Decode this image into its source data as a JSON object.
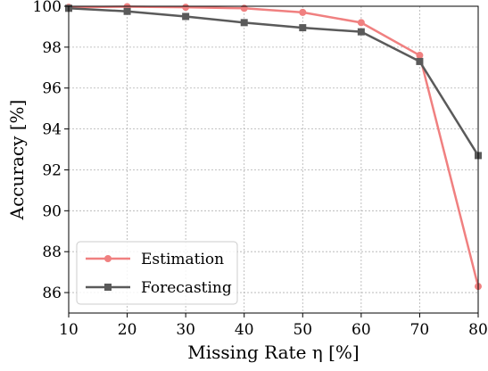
{
  "chart_data": {
    "type": "line",
    "xlabel": "Missing Rate η [%]",
    "ylabel": "Accuracy [%]",
    "xlim": [
      10,
      80
    ],
    "ylim": [
      85.0,
      100
    ],
    "x": [
      10,
      20,
      30,
      40,
      50,
      60,
      70,
      80
    ],
    "xticks": [
      "10",
      "20",
      "30",
      "40",
      "50",
      "60",
      "70",
      "80"
    ],
    "yticks": [
      "86",
      "88",
      "90",
      "92",
      "94",
      "96",
      "98",
      "100"
    ],
    "grid": true,
    "legend_position": "lower-left",
    "series": [
      {
        "name": "Estimation",
        "color": "#f08080",
        "marker": "circle",
        "values": [
          99.95,
          99.98,
          99.95,
          99.9,
          99.7,
          99.2,
          97.6,
          86.3
        ]
      },
      {
        "name": "Forecasting",
        "color": "#5a5a5a",
        "marker": "square",
        "values": [
          99.9,
          99.75,
          99.5,
          99.2,
          98.95,
          98.75,
          97.3,
          92.7
        ]
      }
    ]
  }
}
